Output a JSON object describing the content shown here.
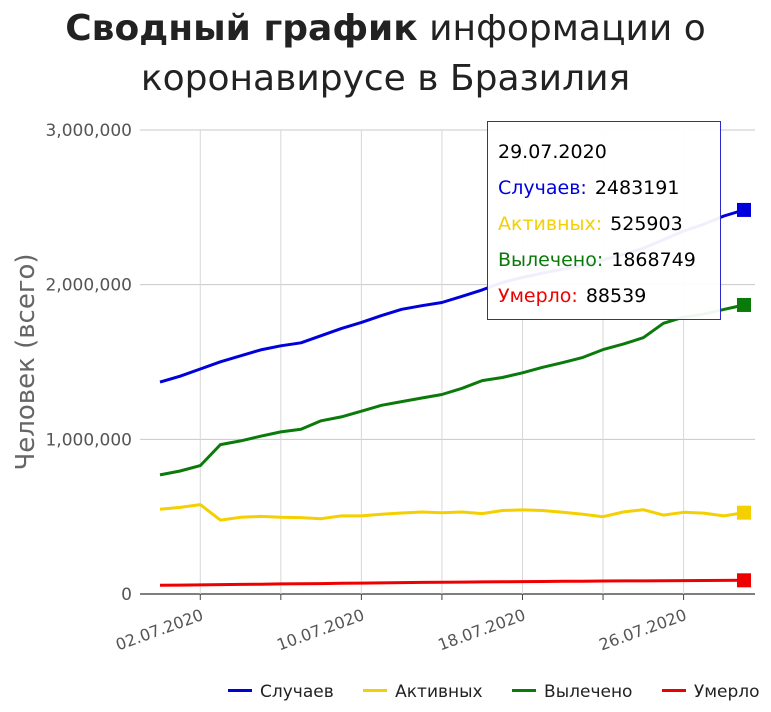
{
  "title": {
    "bold": "Сводный график",
    "rest_line1": "информации о",
    "line2": "коронавирусе в Бразилия"
  },
  "chart_data": {
    "type": "line",
    "ylabel": "Человек (всего)",
    "xlabel": "",
    "ylim": [
      0,
      3000000
    ],
    "yticks": [
      0,
      1000000,
      2000000,
      3000000
    ],
    "ytick_labels": [
      "0",
      "1,000,000",
      "2,000,000",
      "3,000,000"
    ],
    "xtick_labels": [
      "02.07.2020",
      "10.07.2020",
      "18.07.2020",
      "26.07.2020"
    ],
    "x": [
      "30.06.2020",
      "01.07.2020",
      "02.07.2020",
      "03.07.2020",
      "04.07.2020",
      "05.07.2020",
      "06.07.2020",
      "07.07.2020",
      "08.07.2020",
      "09.07.2020",
      "10.07.2020",
      "11.07.2020",
      "12.07.2020",
      "13.07.2020",
      "14.07.2020",
      "15.07.2020",
      "16.07.2020",
      "17.07.2020",
      "18.07.2020",
      "19.07.2020",
      "20.07.2020",
      "21.07.2020",
      "22.07.2020",
      "23.07.2020",
      "24.07.2020",
      "25.07.2020",
      "26.07.2020",
      "27.07.2020",
      "28.07.2020",
      "29.07.2020"
    ],
    "grid": true,
    "legend_position": "bottom",
    "series": [
      {
        "name": "Случаев",
        "color": "#0000dd",
        "values": [
          1370000,
          1408000,
          1455000,
          1501000,
          1540000,
          1578000,
          1605000,
          1624000,
          1670000,
          1716000,
          1756000,
          1800000,
          1841000,
          1864000,
          1885000,
          1925000,
          1966000,
          2014000,
          2047000,
          2075000,
          2100000,
          2125000,
          2160000,
          2195000,
          2235000,
          2290000,
          2347000,
          2390000,
          2444000,
          2483191
        ]
      },
      {
        "name": "Активных",
        "color": "#f5d000",
        "values": [
          548000,
          560000,
          578000,
          478000,
          496000,
          502000,
          496000,
          494000,
          487000,
          505000,
          505000,
          516000,
          524000,
          530000,
          525000,
          530000,
          520000,
          540000,
          544000,
          540000,
          528000,
          516000,
          500000,
          530000,
          545000,
          510000,
          528000,
          523000,
          505000,
          525903
        ]
      },
      {
        "name": "Вылечено",
        "color": "#0a7a0a",
        "values": [
          770000,
          795000,
          830000,
          966000,
          990000,
          1020000,
          1048000,
          1065000,
          1120000,
          1145000,
          1182000,
          1220000,
          1244000,
          1267000,
          1290000,
          1330000,
          1380000,
          1400000,
          1430000,
          1466000,
          1496000,
          1530000,
          1580000,
          1616000,
          1657000,
          1750000,
          1790000,
          1810000,
          1840000,
          1868749
        ]
      },
      {
        "name": "Умерло",
        "color": "#ee0000",
        "values": [
          56000,
          57500,
          59000,
          60500,
          62000,
          63500,
          65000,
          66500,
          67500,
          69000,
          70500,
          72000,
          73500,
          75000,
          76000,
          77000,
          78000,
          79000,
          80000,
          81000,
          82000,
          83000,
          84000,
          84500,
          85000,
          86000,
          86500,
          87500,
          88000,
          88539
        ]
      }
    ]
  },
  "tooltip": {
    "date": "29.07.2020",
    "rows": [
      {
        "label": "Случаев:",
        "value": "2483191",
        "color": "#0000dd"
      },
      {
        "label": "Активных:",
        "value": "525903",
        "color": "#f5d000"
      },
      {
        "label": "Вылечено:",
        "value": "1868749",
        "color": "#0a7a0a"
      },
      {
        "label": "Умерло:",
        "value": "88539",
        "color": "#ee0000"
      }
    ]
  }
}
